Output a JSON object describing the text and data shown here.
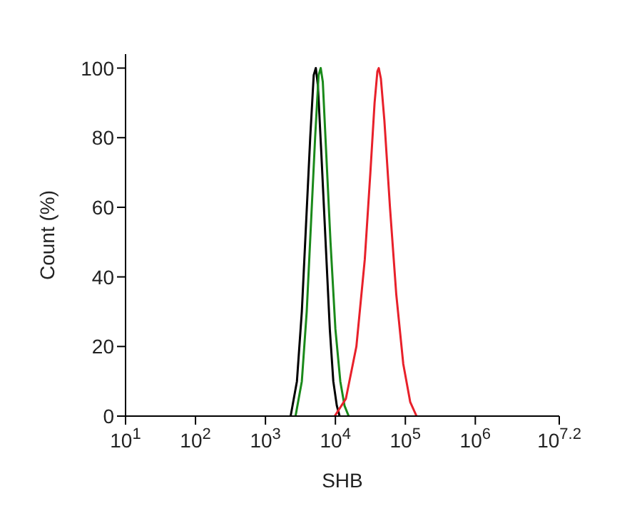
{
  "chart_data": {
    "type": "line",
    "xlabel": "SHB",
    "ylabel": "Count  (%)",
    "log": "x",
    "grid": false,
    "marker": "none",
    "line_style": "solid",
    "xlim": [
      10,
      15848932
    ],
    "xticks": [
      {
        "value": 10,
        "label": "10$^{1}$"
      },
      {
        "value": 100,
        "label": "10$^{2}$"
      },
      {
        "value": 1000,
        "label": "10$^{3}$"
      },
      {
        "value": 10000,
        "label": "10$^{4}$"
      },
      {
        "value": 100000,
        "label": "10$^{5}$"
      },
      {
        "value": 1000000,
        "label": "10$^{6}$"
      },
      {
        "value": 15848932,
        "label": "10$^{7.2}$"
      }
    ],
    "ylim": [
      0,
      104
    ],
    "yticks": [
      0,
      20,
      40,
      60,
      80,
      100
    ],
    "series": [
      {
        "color": "#000000",
        "x": [
          2291,
          2818,
          3311,
          3802,
          4365,
          4898,
          5248,
          5623,
          6310,
          7244,
          8318,
          9333,
          10471,
          11482
        ],
        "values": [
          0,
          10,
          30,
          55,
          80,
          98,
          100,
          95,
          75,
          50,
          25,
          10,
          3,
          0
        ]
      },
      {
        "color": "#1a8a1a",
        "x": [
          2692,
          3311,
          3890,
          4467,
          5129,
          5754,
          6166,
          6607,
          7413,
          8511,
          10000,
          11749,
          13490,
          15488
        ],
        "values": [
          0,
          10,
          30,
          55,
          80,
          98,
          100,
          96,
          75,
          50,
          25,
          10,
          3,
          0
        ]
      },
      {
        "color": "#e8202a",
        "x": [
          9772,
          14125,
          19953,
          26303,
          31623,
          36308,
          39811,
          41687,
          44668,
          50119,
          60256,
          74131,
          93325,
          117490,
          144544
        ],
        "values": [
          0,
          5,
          20,
          45,
          70,
          90,
          99,
          100,
          97,
          85,
          60,
          35,
          15,
          4,
          0
        ]
      }
    ]
  }
}
